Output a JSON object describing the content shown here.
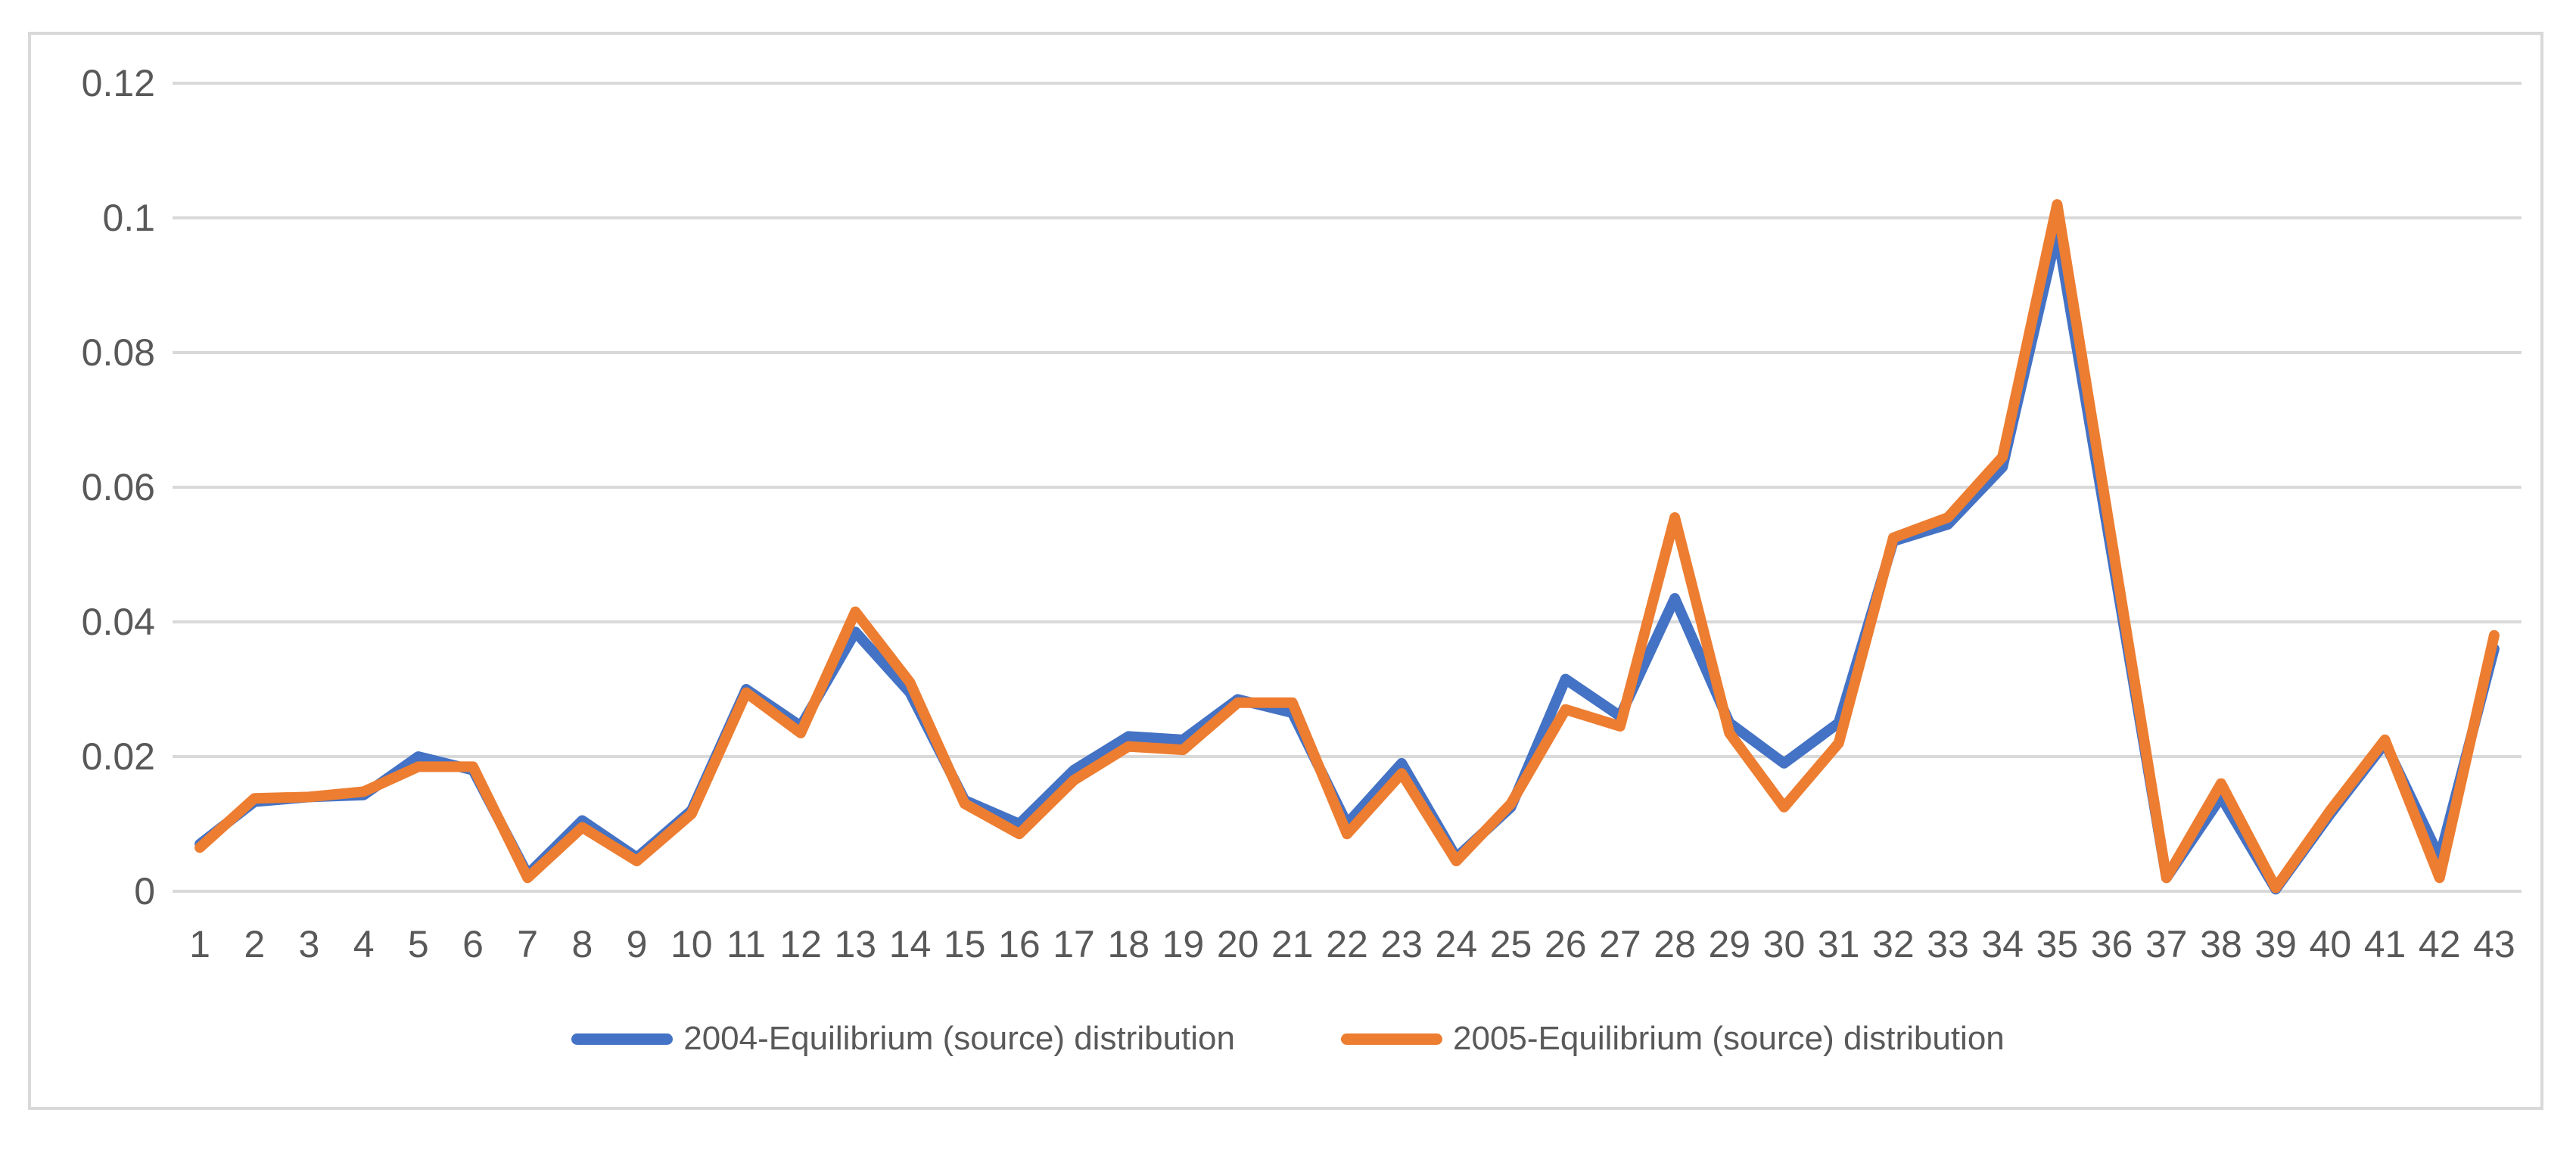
{
  "chart_data": {
    "type": "line",
    "title": "",
    "xlabel": "",
    "ylabel": "",
    "categories": [
      1,
      2,
      3,
      4,
      5,
      6,
      7,
      8,
      9,
      10,
      11,
      12,
      13,
      14,
      15,
      16,
      17,
      18,
      19,
      20,
      21,
      22,
      23,
      24,
      25,
      26,
      27,
      28,
      29,
      30,
      31,
      32,
      33,
      34,
      35,
      36,
      37,
      38,
      39,
      40,
      41,
      42,
      43
    ],
    "series": [
      {
        "name": "2004-Equilibrium (source) distribution",
        "color": "#4472C4",
        "values": [
          0.007,
          0.0133,
          0.014,
          0.0143,
          0.02,
          0.018,
          0.0025,
          0.0105,
          0.005,
          0.012,
          0.03,
          0.0245,
          0.0385,
          0.0295,
          0.0135,
          0.01,
          0.018,
          0.023,
          0.0225,
          0.0285,
          0.0265,
          0.01,
          0.019,
          0.005,
          0.0125,
          0.0315,
          0.026,
          0.0435,
          0.025,
          0.019,
          0.025,
          0.052,
          0.0545,
          0.063,
          0.098,
          0.05,
          0.002,
          0.014,
          0.0003,
          0.0115,
          0.022,
          0.005,
          0.036
        ]
      },
      {
        "name": "2005-Equilibrium (source) distribution",
        "color": "#ED7D31",
        "values": [
          0.0065,
          0.0138,
          0.014,
          0.0148,
          0.0185,
          0.0185,
          0.002,
          0.0095,
          0.0045,
          0.0115,
          0.0295,
          0.0235,
          0.0415,
          0.031,
          0.013,
          0.0085,
          0.0165,
          0.0215,
          0.021,
          0.028,
          0.028,
          0.0085,
          0.0175,
          0.0045,
          0.013,
          0.027,
          0.0245,
          0.0555,
          0.0235,
          0.0125,
          0.022,
          0.0525,
          0.0555,
          0.0645,
          0.102,
          0.052,
          0.002,
          0.016,
          0.0005,
          0.012,
          0.0225,
          0.002,
          0.038
        ]
      }
    ],
    "ylim": [
      0,
      0.12
    ],
    "yticks": [
      "0",
      "0.02",
      "0.04",
      "0.06",
      "0.08",
      "0.1",
      "0.12"
    ],
    "ytick_values": [
      0,
      0.02,
      0.04,
      0.06,
      0.08,
      0.1,
      0.12
    ],
    "grid": "horizontal",
    "gridline_color": "#D9D9D9",
    "legend_position": "bottom",
    "line_width": 14
  },
  "legend": {
    "items": [
      {
        "label": "2004-Equilibrium (source) distribution",
        "color": "#4472C4"
      },
      {
        "label": "2005-Equilibrium (source) distribution",
        "color": "#ED7D31"
      }
    ]
  },
  "colors": {
    "frame_border": "#D9D9D9",
    "axis_text": "#595959",
    "background": "#FFFFFF"
  }
}
